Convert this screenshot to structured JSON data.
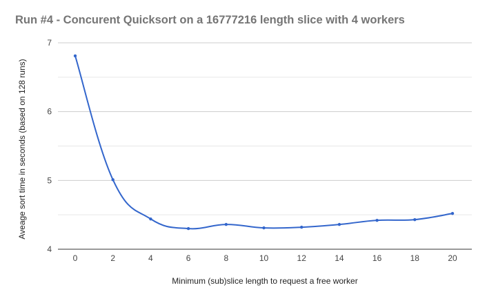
{
  "chart_data": {
    "type": "line",
    "title": "Run #4 - Concurent Quicksort on a 16777216 length slice with 4 workers",
    "xlabel": "Minimum (sub)slice length to request a free worker",
    "ylabel": "Aveage sort time in seconds (based on 128 runs)",
    "x": [
      0,
      2,
      4,
      6,
      8,
      10,
      12,
      14,
      16,
      18,
      20
    ],
    "x_ticks": [
      "0",
      "2",
      "4",
      "6",
      "8",
      "10",
      "12",
      "14",
      "16",
      "18",
      "20"
    ],
    "series": [
      {
        "values": [
          6.81,
          5.01,
          4.44,
          4.3,
          4.36,
          4.31,
          4.32,
          4.36,
          4.42,
          4.43,
          4.52
        ],
        "color": "#3366cc"
      }
    ],
    "ylim": [
      4,
      7
    ],
    "y_ticks": [
      4,
      5,
      6,
      7
    ],
    "grid": true,
    "legend": "none"
  }
}
